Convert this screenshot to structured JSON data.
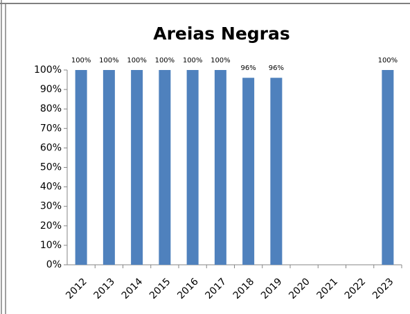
{
  "chart_data": {
    "type": "bar",
    "title": "Areias Negras",
    "categories": [
      "2012",
      "2013",
      "2014",
      "2015",
      "2016",
      "2017",
      "2018",
      "2019",
      "2020",
      "2021",
      "2022",
      "2023"
    ],
    "values": [
      100,
      100,
      100,
      100,
      100,
      100,
      96,
      96,
      null,
      null,
      null,
      100
    ],
    "value_labels": [
      "100%",
      "100%",
      "100%",
      "100%",
      "100%",
      "100%",
      "96%",
      "96%",
      null,
      null,
      null,
      "100%"
    ],
    "color": "#4f81bd",
    "ylim": [
      0,
      100
    ],
    "yticks": [
      {
        "value": 0,
        "label": "0%"
      },
      {
        "value": 10,
        "label": "10%"
      },
      {
        "value": 20,
        "label": "20%"
      },
      {
        "value": 30,
        "label": "30%"
      },
      {
        "value": 40,
        "label": "40%"
      },
      {
        "value": 50,
        "label": "50%"
      },
      {
        "value": 60,
        "label": "60%"
      },
      {
        "value": 70,
        "label": "70%"
      },
      {
        "value": 80,
        "label": "80%"
      },
      {
        "value": 90,
        "label": "90%"
      },
      {
        "value": 100,
        "label": "100%"
      }
    ],
    "grid": false
  }
}
